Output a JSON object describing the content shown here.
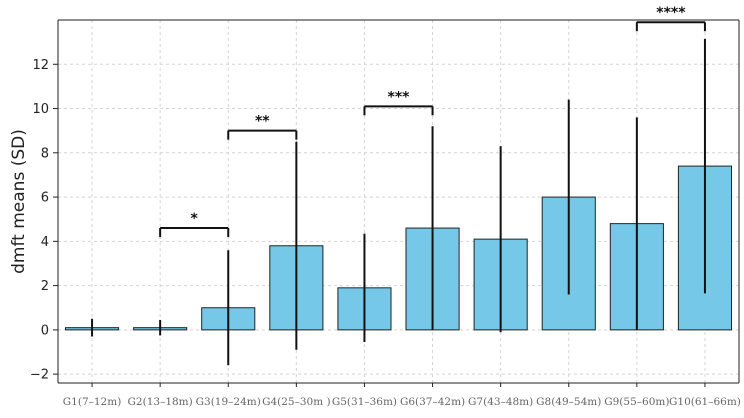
{
  "chart_data": {
    "type": "bar",
    "title": "",
    "xlabel": "",
    "ylabel": "dmft means (SD)",
    "ylim": [
      -2.4,
      14
    ],
    "yticks": [
      -2,
      0,
      2,
      4,
      6,
      8,
      10,
      12
    ],
    "grid": true,
    "categories": [
      "G1(7–12m)",
      "G2(13–18m)",
      "G3(19–24m)",
      "G4(25–30m )",
      "G5(31–36m)",
      "G6(37–42m)",
      "G7(43–48m)",
      "G8(49–54m)",
      "G9(55–60m)",
      "G10(61–66m)"
    ],
    "values": [
      0.1,
      0.1,
      1.0,
      3.8,
      1.9,
      4.6,
      4.1,
      6.0,
      4.8,
      7.4
    ],
    "sd": [
      0.4,
      0.35,
      2.6,
      4.7,
      2.45,
      4.6,
      4.2,
      4.4,
      4.8,
      5.75
    ],
    "bar_color": "#75C8E8",
    "significance": [
      {
        "from": 1,
        "to": 2,
        "y": 4.6,
        "label": "*"
      },
      {
        "from": 2,
        "to": 3,
        "y": 9.0,
        "label": "**"
      },
      {
        "from": 4,
        "to": 5,
        "y": 10.1,
        "label": "***"
      },
      {
        "from": 8,
        "to": 9,
        "y": 13.9,
        "label": "****"
      }
    ]
  }
}
